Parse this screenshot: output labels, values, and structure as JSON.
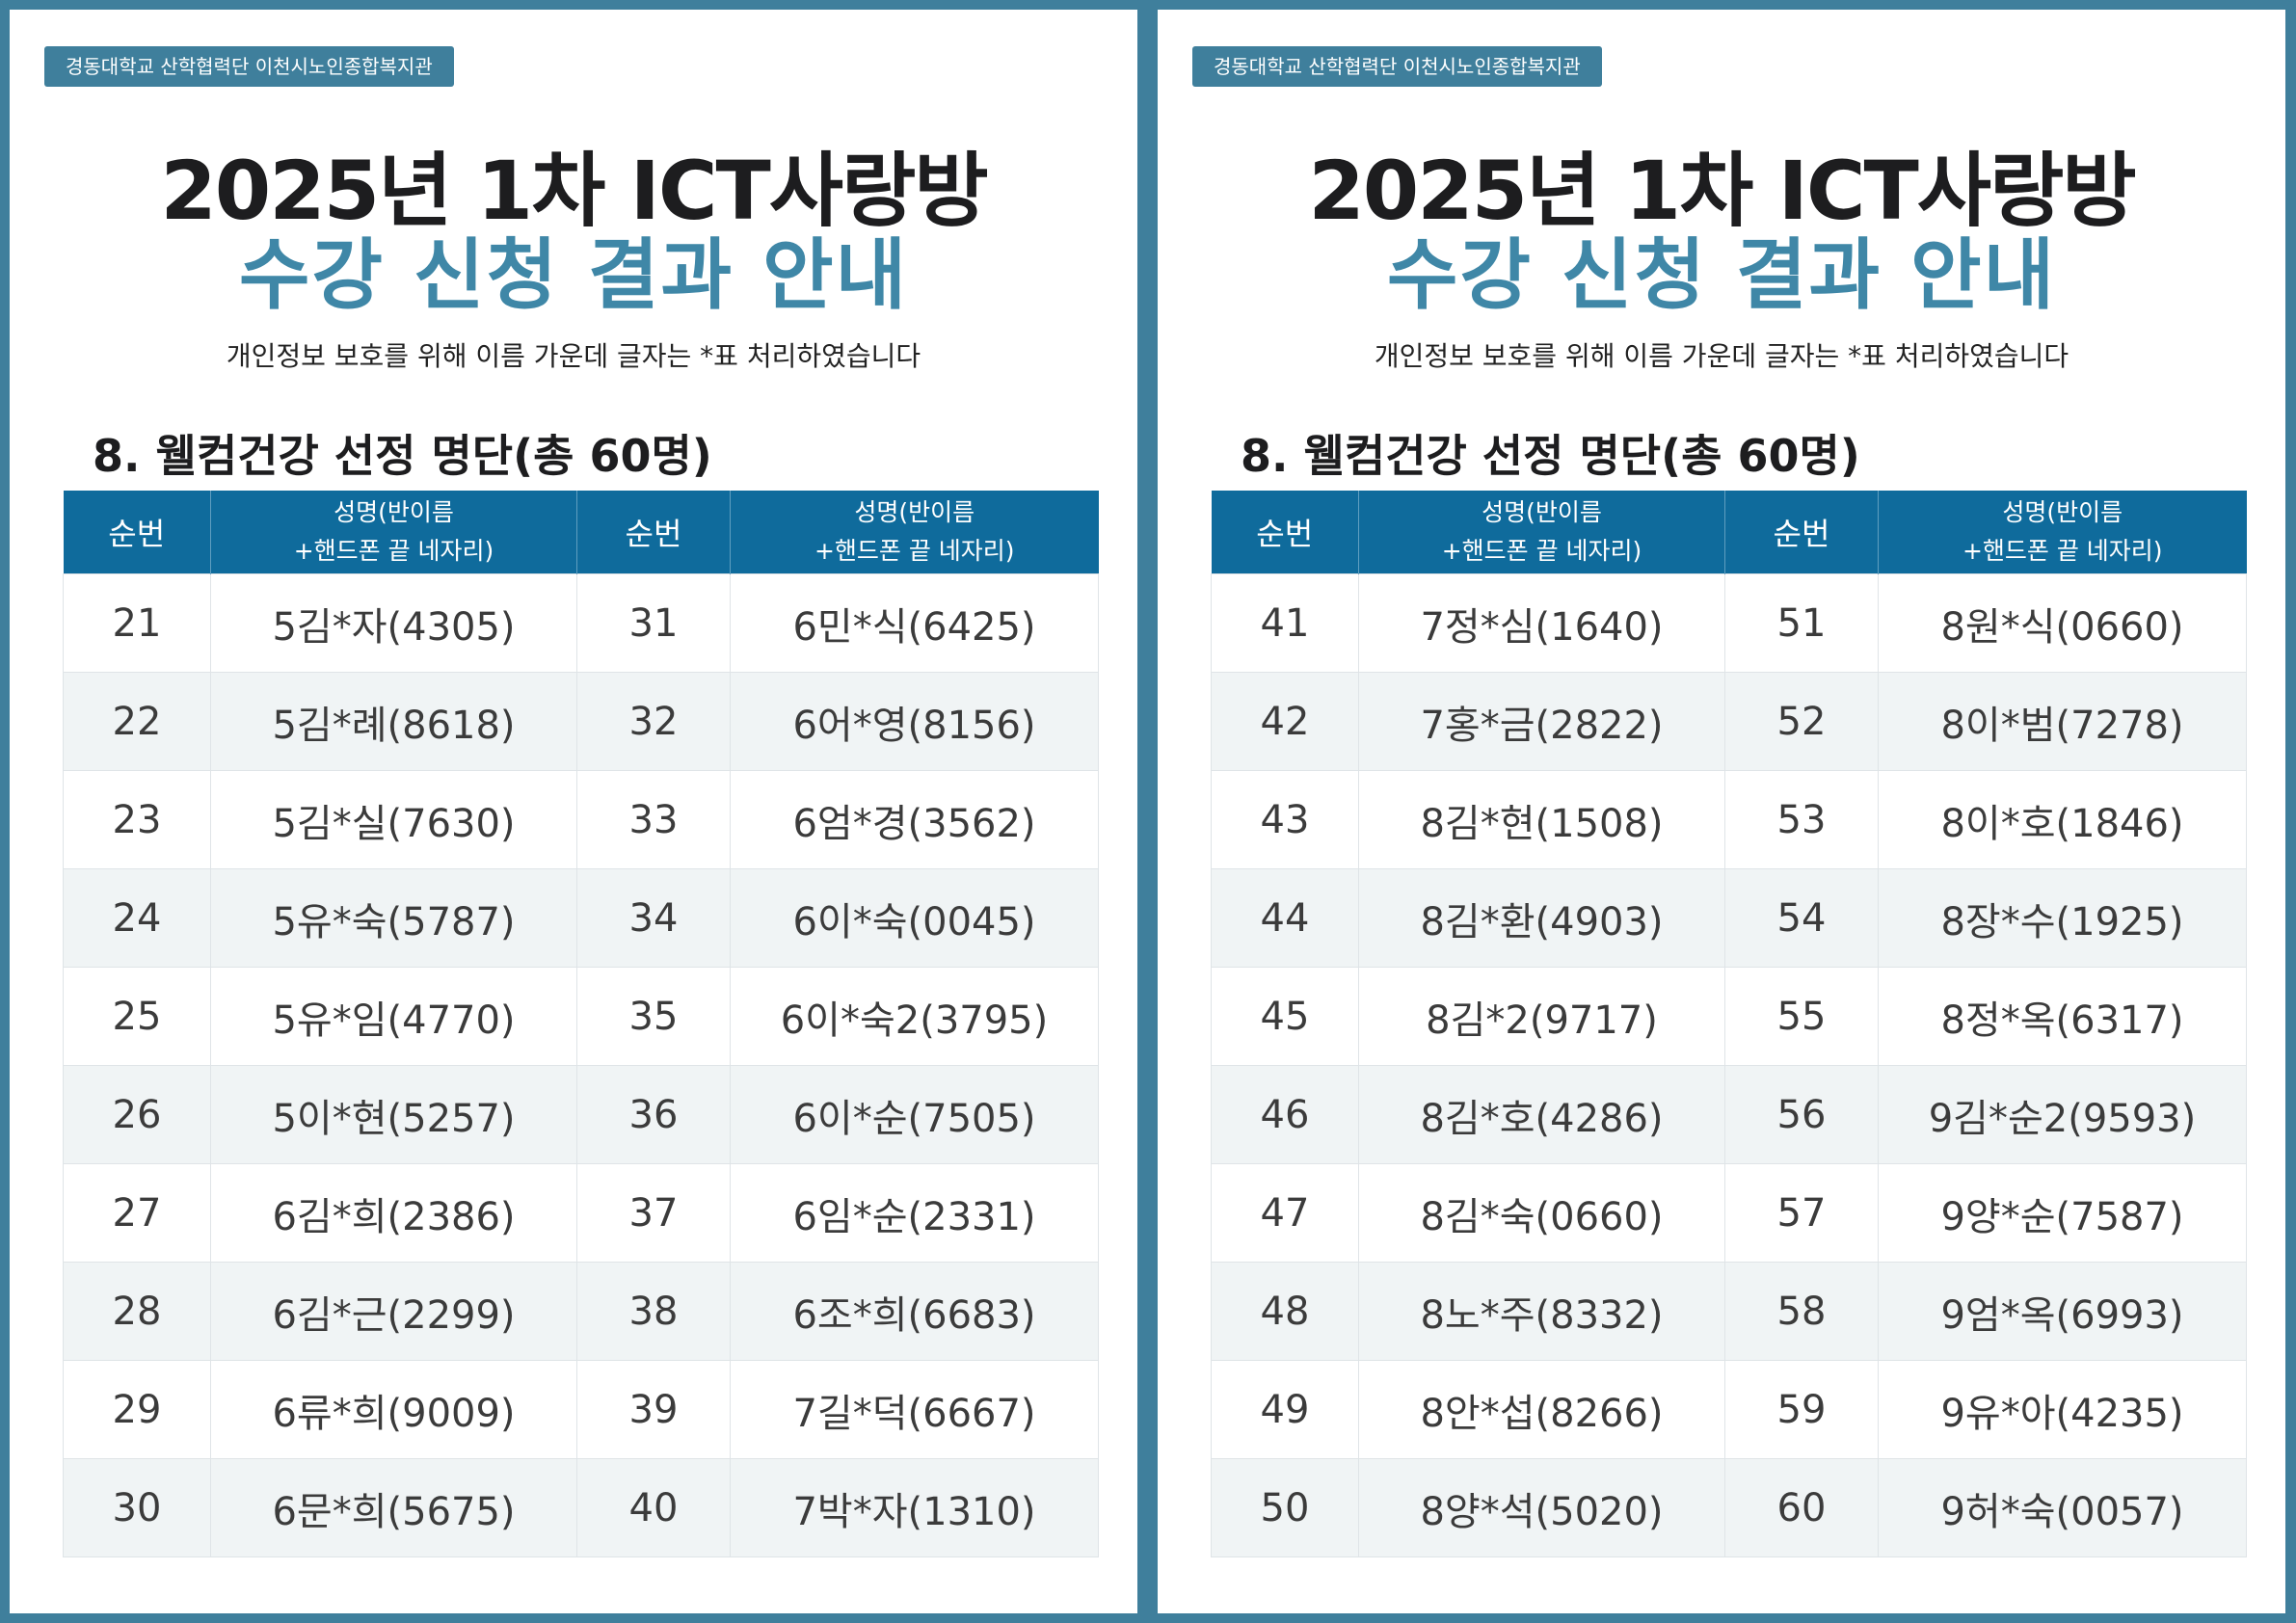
{
  "pages": [
    {
      "org_badge": "경동대학교 산학협력단 이천시노인종합복지관",
      "title_line1": "2025년 1차 ICT사랑방",
      "title_line2": "수강 신청 결과 안내",
      "notice": "개인정보 보호를 위해 이름 가운데 글자는 *표 처리하였습니다",
      "section_title": "8. 웰컴건강 선정 명단(총 60명)",
      "headers": {
        "no": "순번",
        "name_line1": "성명(반이름",
        "name_line2": "+핸드폰 끝 네자리)"
      },
      "rows": [
        [
          "21",
          "5김*자(4305)",
          "31",
          "6민*식(6425)"
        ],
        [
          "22",
          "5김*례(8618)",
          "32",
          "6어*영(8156)"
        ],
        [
          "23",
          "5김*실(7630)",
          "33",
          "6엄*경(3562)"
        ],
        [
          "24",
          "5유*숙(5787)",
          "34",
          "6이*숙(0045)"
        ],
        [
          "25",
          "5유*임(4770)",
          "35",
          "6이*숙2(3795)"
        ],
        [
          "26",
          "5이*현(5257)",
          "36",
          "6이*순(7505)"
        ],
        [
          "27",
          "6김*희(2386)",
          "37",
          "6임*순(2331)"
        ],
        [
          "28",
          "6김*근(2299)",
          "38",
          "6조*희(6683)"
        ],
        [
          "29",
          "6류*희(9009)",
          "39",
          "7길*덕(6667)"
        ],
        [
          "30",
          "6문*희(5675)",
          "40",
          "7박*자(1310)"
        ]
      ]
    },
    {
      "org_badge": "경동대학교 산학협력단 이천시노인종합복지관",
      "title_line1": "2025년 1차 ICT사랑방",
      "title_line2": "수강 신청 결과 안내",
      "notice": "개인정보 보호를 위해 이름 가운데 글자는 *표 처리하였습니다",
      "section_title": "8. 웰컴건강 선정 명단(총 60명)",
      "headers": {
        "no": "순번",
        "name_line1": "성명(반이름",
        "name_line2": "+핸드폰 끝 네자리)"
      },
      "rows": [
        [
          "41",
          "7정*심(1640)",
          "51",
          "8원*식(0660)"
        ],
        [
          "42",
          "7홍*금(2822)",
          "52",
          "8이*범(7278)"
        ],
        [
          "43",
          "8김*현(1508)",
          "53",
          "8이*호(1846)"
        ],
        [
          "44",
          "8김*환(4903)",
          "54",
          "8장*수(1925)"
        ],
        [
          "45",
          "8김*2(9717)",
          "55",
          "8정*옥(6317)"
        ],
        [
          "46",
          "8김*호(4286)",
          "56",
          "9김*순2(9593)"
        ],
        [
          "47",
          "8김*숙(0660)",
          "57",
          "9양*순(7587)"
        ],
        [
          "48",
          "8노*주(8332)",
          "58",
          "9엄*옥(6993)"
        ],
        [
          "49",
          "8안*섭(8266)",
          "59",
          "9유*아(4235)"
        ],
        [
          "50",
          "8양*석(5020)",
          "60",
          "9허*숙(0057)"
        ]
      ]
    }
  ],
  "colors": {
    "frame": "#3f7f9c",
    "title_dark": "#1d1d1f",
    "title_accent": "#3f87a7",
    "table_header": "#0f6b9c",
    "row_alt": "#f0f4f5"
  }
}
